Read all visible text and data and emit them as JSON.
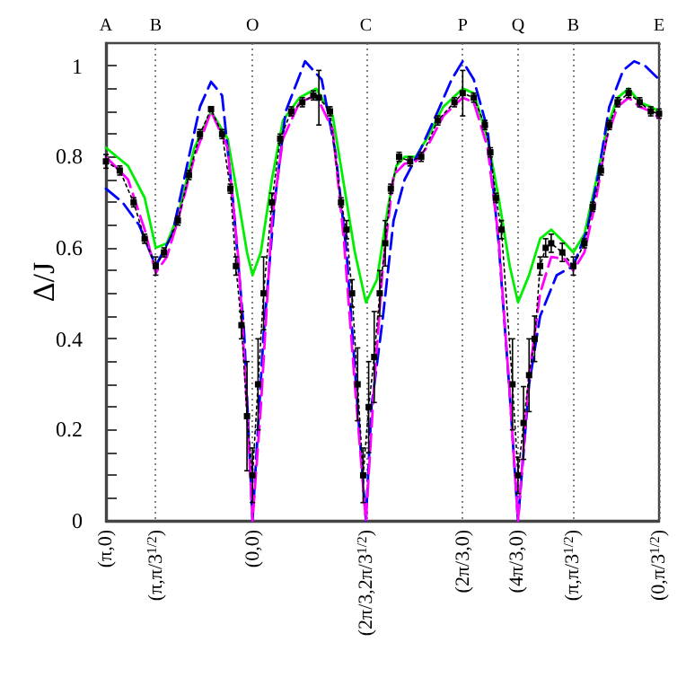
{
  "chart_data": {
    "type": "line",
    "ylabel": "Δ/J",
    "categories": [
      "(π,0)",
      null,
      null,
      null,
      null,
      null,
      null,
      null,
      null,
      null,
      null,
      null,
      null,
      null,
      null,
      null,
      null,
      null,
      "(π,π/3$^{1/2}$)",
      null,
      null,
      null,
      null,
      null,
      null,
      null,
      null,
      null,
      null,
      null,
      null,
      null,
      null,
      null,
      null,
      null,
      null,
      null,
      null,
      null,
      null,
      null,
      null,
      null,
      null,
      null,
      null,
      null,
      null,
      null,
      null,
      null,
      null,
      "(0,0)",
      null,
      null,
      null,
      null,
      null,
      null,
      null,
      null,
      null,
      null,
      null,
      null,
      null,
      null,
      null,
      null,
      null,
      null,
      null,
      null,
      null,
      null,
      null,
      null,
      null,
      null,
      null,
      null,
      null,
      null,
      null,
      null,
      null,
      null,
      null,
      null,
      null,
      null,
      null,
      null,
      "(2π/3,2π/3$^{1/2}$)",
      null,
      null,
      null,
      null,
      null,
      null,
      null,
      null,
      null,
      null,
      null,
      null,
      null,
      null,
      null,
      null,
      null,
      null,
      null,
      null,
      null,
      null,
      null,
      null,
      null,
      null,
      null,
      null,
      null,
      null,
      null,
      null,
      null,
      null,
      "(2π/3,0)",
      null,
      null,
      null,
      null,
      null,
      null,
      null,
      null,
      null,
      null,
      null,
      null,
      null,
      null,
      null,
      null,
      null,
      null,
      null,
      "(4π/3,0)",
      null,
      null,
      null,
      null,
      null,
      null,
      null,
      null,
      null,
      null,
      null,
      null,
      null,
      null,
      null,
      null,
      null,
      null,
      null,
      "(π,π/3$^{1/2}$)",
      null,
      null,
      null,
      null,
      null,
      null,
      null,
      null,
      null,
      null,
      null,
      null,
      null,
      null,
      null,
      null,
      null,
      null,
      null,
      null,
      null,
      null,
      null,
      null,
      null,
      null,
      null,
      null,
      null,
      null,
      "(0,π/3$^{1/2}$)"
    ],
    "annotations": [
      "A",
      "B",
      "O",
      "C",
      "P",
      "Q",
      "B",
      "E"
    ],
    "ylim": [
      0,
      1.05
    ],
    "yticks": [
      0,
      {
        "value": 0.05,
        "label": null
      },
      {
        "value": 0.1,
        "label": null
      },
      {
        "value": 0.15,
        "label": null
      },
      0.2,
      {
        "value": 0.25,
        "label": null
      },
      {
        "value": 0.3,
        "label": null
      },
      {
        "value": 0.35,
        "label": null
      },
      0.4,
      {
        "value": 0.45,
        "label": null
      },
      {
        "value": 0.5,
        "label": null
      },
      {
        "value": 0.55,
        "label": null
      },
      0.6,
      {
        "value": 0.65,
        "label": null
      },
      {
        "value": 0.7,
        "label": null
      },
      {
        "value": 0.75,
        "label": null
      },
      0.8,
      {
        "value": 0.85,
        "label": null
      },
      {
        "value": 0.9,
        "label": null
      },
      {
        "value": 0.95,
        "label": null
      },
      1
    ],
    "grid": "x",
    "series": [
      {
        "color": "#00ee00",
        "line_style": "solid",
        "marker": "none",
        "values": [
          0.82,
          null,
          null,
          null,
          null,
          null,
          null,
          null,
          0.78,
          null,
          null,
          null,
          null,
          null,
          0.71,
          null,
          null,
          null,
          0.6,
          null,
          null,
          null,
          0.61,
          null,
          null,
          null,
          0.67,
          null,
          null,
          null,
          null,
          null,
          0.82,
          null,
          null,
          null,
          null,
          null,
          0.9,
          null,
          null,
          null,
          null,
          null,
          0.84,
          null,
          null,
          null,
          0.7,
          null,
          null,
          0.59,
          null,
          0.54,
          null,
          null,
          0.59,
          null,
          null,
          null,
          0.75,
          null,
          null,
          null,
          0.88,
          null,
          null,
          null,
          null,
          null,
          0.93,
          null,
          null,
          null,
          null,
          null,
          0.95,
          null,
          null,
          null,
          null,
          null,
          0.89,
          null,
          null,
          null,
          0.74,
          null,
          null,
          null,
          0.59,
          null,
          null,
          null,
          0.48,
          null,
          null,
          null,
          0.53,
          null,
          null,
          null,
          0.69,
          null,
          null,
          0.78,
          null,
          null,
          0.8,
          null,
          null,
          null,
          0.8,
          null,
          null,
          null,
          0.84,
          null,
          null,
          null,
          null,
          null,
          0.91,
          null,
          null,
          null,
          null,
          null,
          null,
          0.95,
          null,
          null,
          null,
          0.94,
          null,
          null,
          null,
          null,
          0.84,
          null,
          null,
          null,
          0.71,
          null,
          null,
          null,
          0.56,
          null,
          null,
          0.48,
          null,
          null,
          null,
          0.54,
          null,
          null,
          null,
          0.62,
          null,
          null,
          null,
          0.64,
          null,
          null,
          null,
          null,
          0.61,
          null,
          null,
          0.59,
          null,
          null,
          null,
          0.63,
          null,
          null,
          null,
          0.74,
          null,
          null,
          null,
          0.86,
          null,
          null,
          null,
          0.93,
          null,
          null,
          null,
          0.95,
          null,
          null,
          null,
          0.92,
          null,
          null,
          null,
          0.91,
          null,
          null,
          0.9
        ]
      },
      {
        "color": "#0000ff",
        "line_style": "dashed",
        "marker": "none",
        "values": [
          0.73,
          null,
          null,
          null,
          null,
          null,
          0.7,
          null,
          null,
          null,
          null,
          null,
          0.65,
          null,
          null,
          null,
          null,
          null,
          0.56,
          null,
          null,
          null,
          null,
          null,
          0.63,
          null,
          null,
          null,
          null,
          null,
          0.8,
          null,
          null,
          null,
          0.91,
          null,
          null,
          null,
          0.965,
          null,
          null,
          null,
          0.935,
          null,
          null,
          null,
          0.7,
          null,
          null,
          null,
          0.41,
          null,
          null,
          0,
          null,
          null,
          null,
          0.41,
          null,
          null,
          null,
          0.7,
          null,
          null,
          null,
          0.9,
          null,
          null,
          null,
          null,
          null,
          null,
          1.01,
          null,
          null,
          null,
          null,
          null,
          0.97,
          null,
          null,
          null,
          null,
          0.81,
          null,
          null,
          null,
          0.59,
          null,
          null,
          null,
          0.25,
          null,
          null,
          0,
          null,
          0.25,
          null,
          null,
          null,
          0.44,
          null,
          null,
          null,
          0.66,
          null,
          null,
          null,
          0.75,
          null,
          null,
          null,
          null,
          null,
          0.82,
          null,
          null,
          null,
          null,
          null,
          0.9,
          null,
          null,
          null,
          null,
          0.97,
          null,
          null,
          null,
          1.01,
          null,
          null,
          null,
          0.97,
          null,
          null,
          null,
          null,
          0.86,
          null,
          null,
          null,
          0.61,
          null,
          null,
          null,
          0.28,
          null,
          null,
          0,
          null,
          null,
          null,
          0.3,
          null,
          null,
          null,
          0.45,
          null,
          null,
          null,
          null,
          null,
          0.54,
          null,
          null,
          null,
          null,
          null,
          0.56,
          null,
          null,
          null,
          null,
          0.64,
          null,
          null,
          null,
          0.76,
          null,
          null,
          null,
          0.91,
          null,
          null,
          null,
          null,
          0.99,
          null,
          null,
          null,
          1.01,
          null,
          null,
          null,
          1.0,
          null,
          null,
          null,
          null,
          0.97
        ]
      },
      {
        "color": "#ff00ff",
        "line_style": "dashed",
        "marker": "none",
        "values": [
          0.8,
          null,
          null,
          null,
          null,
          null,
          null,
          null,
          0.75,
          null,
          null,
          null,
          null,
          null,
          0.64,
          null,
          null,
          null,
          0.545,
          null,
          null,
          null,
          0.58,
          null,
          null,
          null,
          0.66,
          null,
          null,
          null,
          null,
          null,
          0.8,
          null,
          null,
          null,
          null,
          null,
          0.9,
          null,
          null,
          null,
          null,
          null,
          0.82,
          null,
          null,
          null,
          0.57,
          null,
          null,
          0.25,
          null,
          0,
          null,
          null,
          0.25,
          null,
          null,
          null,
          0.66,
          null,
          null,
          null,
          0.84,
          null,
          null,
          null,
          null,
          null,
          0.92,
          null,
          null,
          null,
          null,
          null,
          0.935,
          null,
          null,
          null,
          null,
          null,
          0.86,
          null,
          null,
          null,
          0.62,
          null,
          null,
          null,
          0.3,
          null,
          null,
          null,
          0,
          null,
          null,
          0.3,
          null,
          null,
          0.55,
          null,
          null,
          null,
          0.76,
          null,
          null,
          null,
          0.785,
          null,
          null,
          null,
          0.79,
          null,
          null,
          null,
          0.82,
          null,
          null,
          null,
          null,
          null,
          0.89,
          null,
          null,
          null,
          null,
          null,
          null,
          0.93,
          null,
          null,
          null,
          0.92,
          null,
          null,
          null,
          null,
          0.82,
          null,
          null,
          null,
          0.62,
          null,
          null,
          null,
          0.28,
          null,
          null,
          0,
          null,
          null,
          null,
          0.32,
          null,
          null,
          null,
          0.5,
          null,
          null,
          null,
          0.58,
          null,
          null,
          null,
          null,
          0.575,
          null,
          null,
          0.55,
          null,
          null,
          null,
          0.59,
          null,
          null,
          null,
          0.7,
          null,
          null,
          null,
          0.84,
          null,
          null,
          null,
          0.91,
          null,
          null,
          null,
          0.93,
          null,
          null,
          null,
          0.91,
          null,
          null,
          null,
          0.9,
          null,
          null,
          0.885
        ]
      },
      {
        "color": "#000000",
        "line_style": "dotted",
        "marker": "square",
        "values": [
          0.79,
          null,
          null,
          null,
          null,
          0.77,
          null,
          null,
          null,
          null,
          0.7,
          null,
          null,
          null,
          0.62,
          null,
          null,
          null,
          0.56,
          null,
          null,
          0.59,
          null,
          null,
          null,
          null,
          0.66,
          null,
          null,
          null,
          0.76,
          null,
          null,
          null,
          0.85,
          null,
          null,
          null,
          0.905,
          null,
          null,
          null,
          0.85,
          null,
          null,
          0.73,
          null,
          0.56,
          null,
          0.43,
          null,
          0.23,
          null,
          0.1,
          null,
          0.3,
          null,
          0.5,
          null,
          null,
          0.7,
          null,
          null,
          0.84,
          null,
          null,
          null,
          0.9,
          null,
          null,
          null,
          0.92,
          null,
          null,
          null,
          0.935,
          null,
          0.93,
          null,
          null,
          null,
          0.9,
          null,
          null,
          null,
          0.7,
          null,
          0.64,
          null,
          0.5,
          null,
          0.3,
          null,
          0.1,
          null,
          0.25,
          null,
          0.36,
          null,
          0.5,
          null,
          0.61,
          null,
          0.73,
          null,
          null,
          0.8,
          null,
          null,
          null,
          0.79,
          null,
          null,
          null,
          0.8,
          null,
          null,
          null,
          null,
          null,
          0.88,
          null,
          null,
          null,
          null,
          null,
          0.92,
          null,
          null,
          0.94,
          null,
          null,
          null,
          0.93,
          null,
          null,
          null,
          0.87,
          null,
          0.81,
          null,
          0.71,
          null,
          0.64,
          null,
          null,
          null,
          0.3,
          null,
          0.1,
          null,
          0.215,
          null,
          0.32,
          null,
          0.4,
          null,
          0.56,
          null,
          0.6,
          null,
          0.61,
          null,
          null,
          null,
          0.59,
          null,
          null,
          null,
          0.56,
          null,
          null,
          null,
          0.61,
          null,
          null,
          0.69,
          null,
          null,
          0.77,
          null,
          null,
          0.87,
          null,
          null,
          0.92,
          null,
          null,
          null,
          0.94,
          null,
          null,
          null,
          0.92,
          null,
          null,
          null,
          0.9,
          null,
          null,
          0.895
        ],
        "errors": [
          0.015,
          null,
          null,
          null,
          null,
          0.01,
          null,
          null,
          null,
          null,
          0.01,
          null,
          null,
          null,
          0.01,
          null,
          null,
          null,
          0.02,
          null,
          null,
          0.01,
          null,
          null,
          null,
          null,
          0.01,
          null,
          null,
          null,
          0.01,
          null,
          null,
          null,
          0.01,
          null,
          null,
          null,
          0.005,
          null,
          null,
          null,
          0.01,
          null,
          null,
          0.01,
          null,
          0.02,
          null,
          0.03,
          null,
          0.12,
          null,
          0.06,
          null,
          0.1,
          null,
          0.08,
          null,
          null,
          0.02,
          null,
          null,
          0.01,
          null,
          null,
          null,
          0.01,
          null,
          null,
          null,
          0.01,
          null,
          null,
          null,
          0.01,
          null,
          0.06,
          null,
          null,
          null,
          0.01,
          null,
          null,
          null,
          0.01,
          null,
          0.02,
          null,
          0.03,
          null,
          0.08,
          null,
          0.06,
          null,
          0.1,
          null,
          0.1,
          null,
          0.05,
          null,
          0.05,
          null,
          0.01,
          null,
          null,
          0.01,
          null,
          null,
          null,
          0.01,
          null,
          null,
          null,
          0.01,
          null,
          null,
          null,
          null,
          null,
          0.01,
          null,
          null,
          null,
          null,
          null,
          0.01,
          null,
          null,
          0.05,
          null,
          null,
          null,
          0.01,
          null,
          null,
          null,
          0.01,
          null,
          0.01,
          null,
          0.01,
          null,
          0.02,
          null,
          null,
          null,
          0.1,
          null,
          0.04,
          null,
          0.08,
          null,
          0.08,
          null,
          0.05,
          null,
          0.02,
          null,
          0.02,
          null,
          0.02,
          null,
          null,
          null,
          0.02,
          null,
          null,
          null,
          0.02,
          null,
          null,
          null,
          0.01,
          null,
          null,
          0.01,
          null,
          null,
          0.01,
          null,
          null,
          0.01,
          null,
          null,
          0.01,
          null,
          null,
          null,
          0.01,
          null,
          null,
          null,
          0.01,
          null,
          null,
          null,
          0.01,
          null,
          null,
          0.01
        ]
      }
    ]
  }
}
